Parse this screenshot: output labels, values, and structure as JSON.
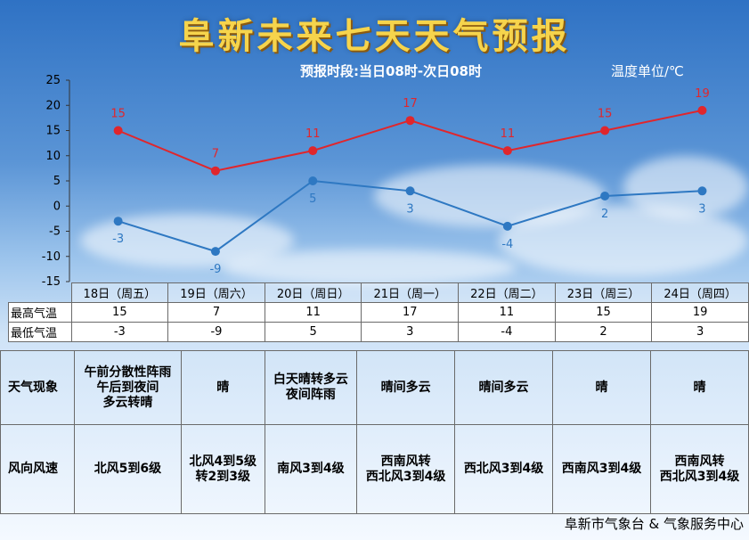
{
  "title": "阜新未来七天天气预报",
  "subtitle": "预报时段:当日08时-次日08时",
  "unit": "温度单位/℃",
  "footer": "阜新市气象台 & 气象服务中心",
  "colors": {
    "high": "#e0262c",
    "low": "#2e78c2",
    "title": "#f6d44c"
  },
  "chart_data": {
    "type": "line",
    "categories": [
      "18日（周五）",
      "19日（周六）",
      "20日（周日）",
      "21日（周一）",
      "22日（周二）",
      "23日（周三）",
      "24日（周四）"
    ],
    "yticks": [
      25,
      20,
      15,
      10,
      5,
      0,
      -5,
      -10,
      -15
    ],
    "ylim": [
      -15,
      25
    ],
    "grid": false,
    "series": [
      {
        "name": "最高气温",
        "values": [
          15,
          7,
          11,
          17,
          11,
          15,
          19
        ],
        "color": "#e0262c"
      },
      {
        "name": "最低气温",
        "values": [
          -3,
          -9,
          5,
          3,
          -4,
          2,
          3
        ],
        "color": "#2e78c2"
      }
    ]
  },
  "table": {
    "high_label": "最高气温",
    "low_label": "最低气温",
    "weather_label": "天气现象",
    "wind_label": "风向风速",
    "weather": [
      [
        "午前分散性阵雨",
        "午后到夜间",
        "多云转晴"
      ],
      [
        "晴"
      ],
      [
        "白天晴转多云",
        "夜间阵雨"
      ],
      [
        "晴间多云"
      ],
      [
        "晴间多云"
      ],
      [
        "晴"
      ],
      [
        "晴"
      ]
    ],
    "wind": [
      [
        "北风5到6级"
      ],
      [
        "北风4到5级",
        "转2到3级"
      ],
      [
        "南风3到4级"
      ],
      [
        "西南风转",
        "西北风3到4级"
      ],
      [
        "西北风3到4级"
      ],
      [
        "西南风3到4级"
      ],
      [
        "西南风转",
        "西北风3到4级"
      ]
    ]
  }
}
